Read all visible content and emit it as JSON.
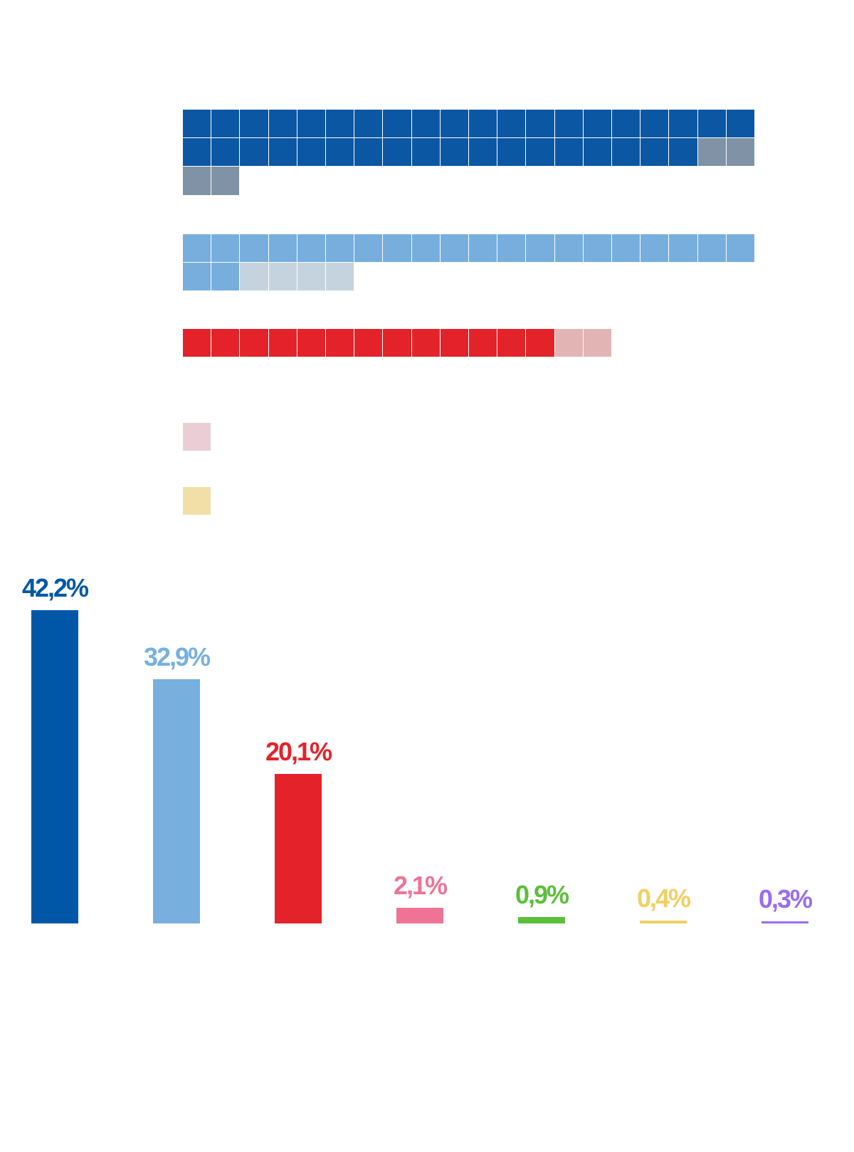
{
  "chart_data": [
    {
      "type": "waffle",
      "rows": [
        {
          "filled": 38,
          "changed": 4,
          "color_filled": "#0b57a3",
          "color_changed": "#8092a5"
        },
        {
          "filled": 22,
          "changed": 4,
          "color_filled": "#77aede",
          "color_changed": "#c5d3de"
        },
        {
          "filled": 13,
          "changed": 2,
          "color_filled": "#e32329",
          "color_changed": "#e2b5b4"
        },
        {
          "filled": 0,
          "changed": 1,
          "color_filled": "#ef7394",
          "color_changed": "#ebcdd5"
        },
        {
          "filled": 0,
          "changed": 1,
          "color_filled": "#f2cf63",
          "color_changed": "#f2dfa8"
        }
      ],
      "cells_per_row": 20
    },
    {
      "type": "bar",
      "values": [
        42.2,
        32.9,
        20.1,
        2.1,
        0.9,
        0.4,
        0.3
      ],
      "labels": [
        "42,2%",
        "32,9%",
        "20,1%",
        "2,1%",
        "0,9%",
        "0,4%",
        "0,3%"
      ],
      "colors": [
        "#0057a8",
        "#77b0df",
        "#e42229",
        "#ef7394",
        "#5bbf3a",
        "#f2cf63",
        "#9a6cf0"
      ],
      "ylim": [
        0,
        42.2
      ]
    }
  ]
}
